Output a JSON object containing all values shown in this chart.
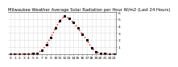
{
  "title": "Milwaukee Weather Average Solar Radiation per Hour W/m2 (Last 24 Hours)",
  "hours": [
    0,
    1,
    2,
    3,
    4,
    5,
    6,
    7,
    8,
    9,
    10,
    11,
    12,
    13,
    14,
    15,
    16,
    17,
    18,
    19,
    20,
    21,
    22,
    23
  ],
  "values": [
    0,
    0,
    0,
    0,
    0,
    2,
    8,
    50,
    130,
    240,
    370,
    475,
    545,
    510,
    450,
    370,
    280,
    200,
    90,
    25,
    8,
    2,
    0,
    0
  ],
  "line_color": "#ff0000",
  "line_style": "dotted",
  "line_width": 1.0,
  "marker": "s",
  "marker_size": 1.2,
  "bg_color": "#ffffff",
  "grid_color": "#999999",
  "grid_style": "dotted",
  "ylim": [
    0,
    600
  ],
  "yticks": [
    100,
    200,
    300,
    400,
    500,
    600
  ],
  "ytick_labels": [
    "1",
    "2",
    "3",
    "4",
    "5",
    "6"
  ],
  "xlim": [
    -0.5,
    23.5
  ],
  "title_fontsize": 3.8,
  "tick_fontsize": 3.2
}
